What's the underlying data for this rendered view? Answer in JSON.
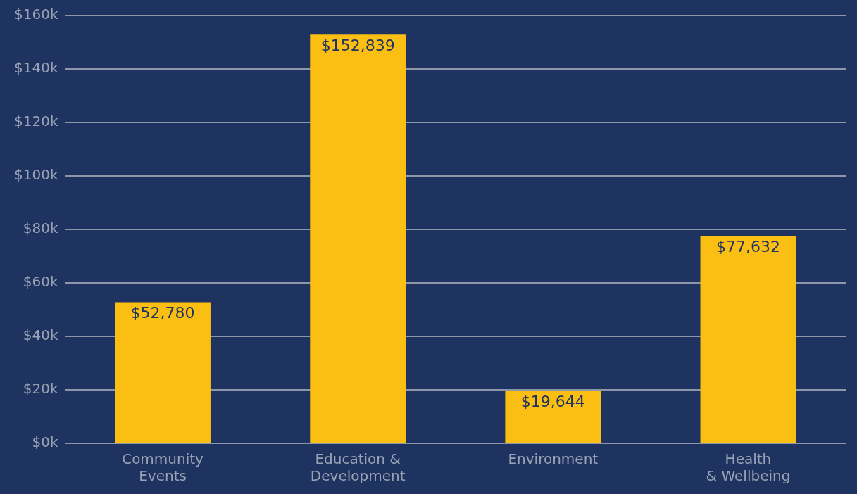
{
  "chart_data": {
    "type": "bar",
    "categories": [
      "Community\nEvents",
      "Education &\nDevelopment",
      "Environment",
      "Health\n& Wellbeing"
    ],
    "values": [
      52780,
      152839,
      19644,
      77632
    ],
    "value_labels": [
      "$52,780",
      "$152,839",
      "$19,644",
      "$77,632"
    ],
    "color": "#fbbf14",
    "ylim": [
      0,
      160000
    ],
    "yticks": [
      {
        "value": 0,
        "label": "$0k"
      },
      {
        "value": 20000,
        "label": "$20k"
      },
      {
        "value": 40000,
        "label": "$40k"
      },
      {
        "value": 60000,
        "label": "$60k"
      },
      {
        "value": 80000,
        "label": "$80k"
      },
      {
        "value": 100000,
        "label": "$100k"
      },
      {
        "value": 120000,
        "label": "$120k"
      },
      {
        "value": 140000,
        "label": "$140k"
      },
      {
        "value": 160000,
        "label": "$160k"
      }
    ],
    "grid": "y",
    "legend": false
  }
}
